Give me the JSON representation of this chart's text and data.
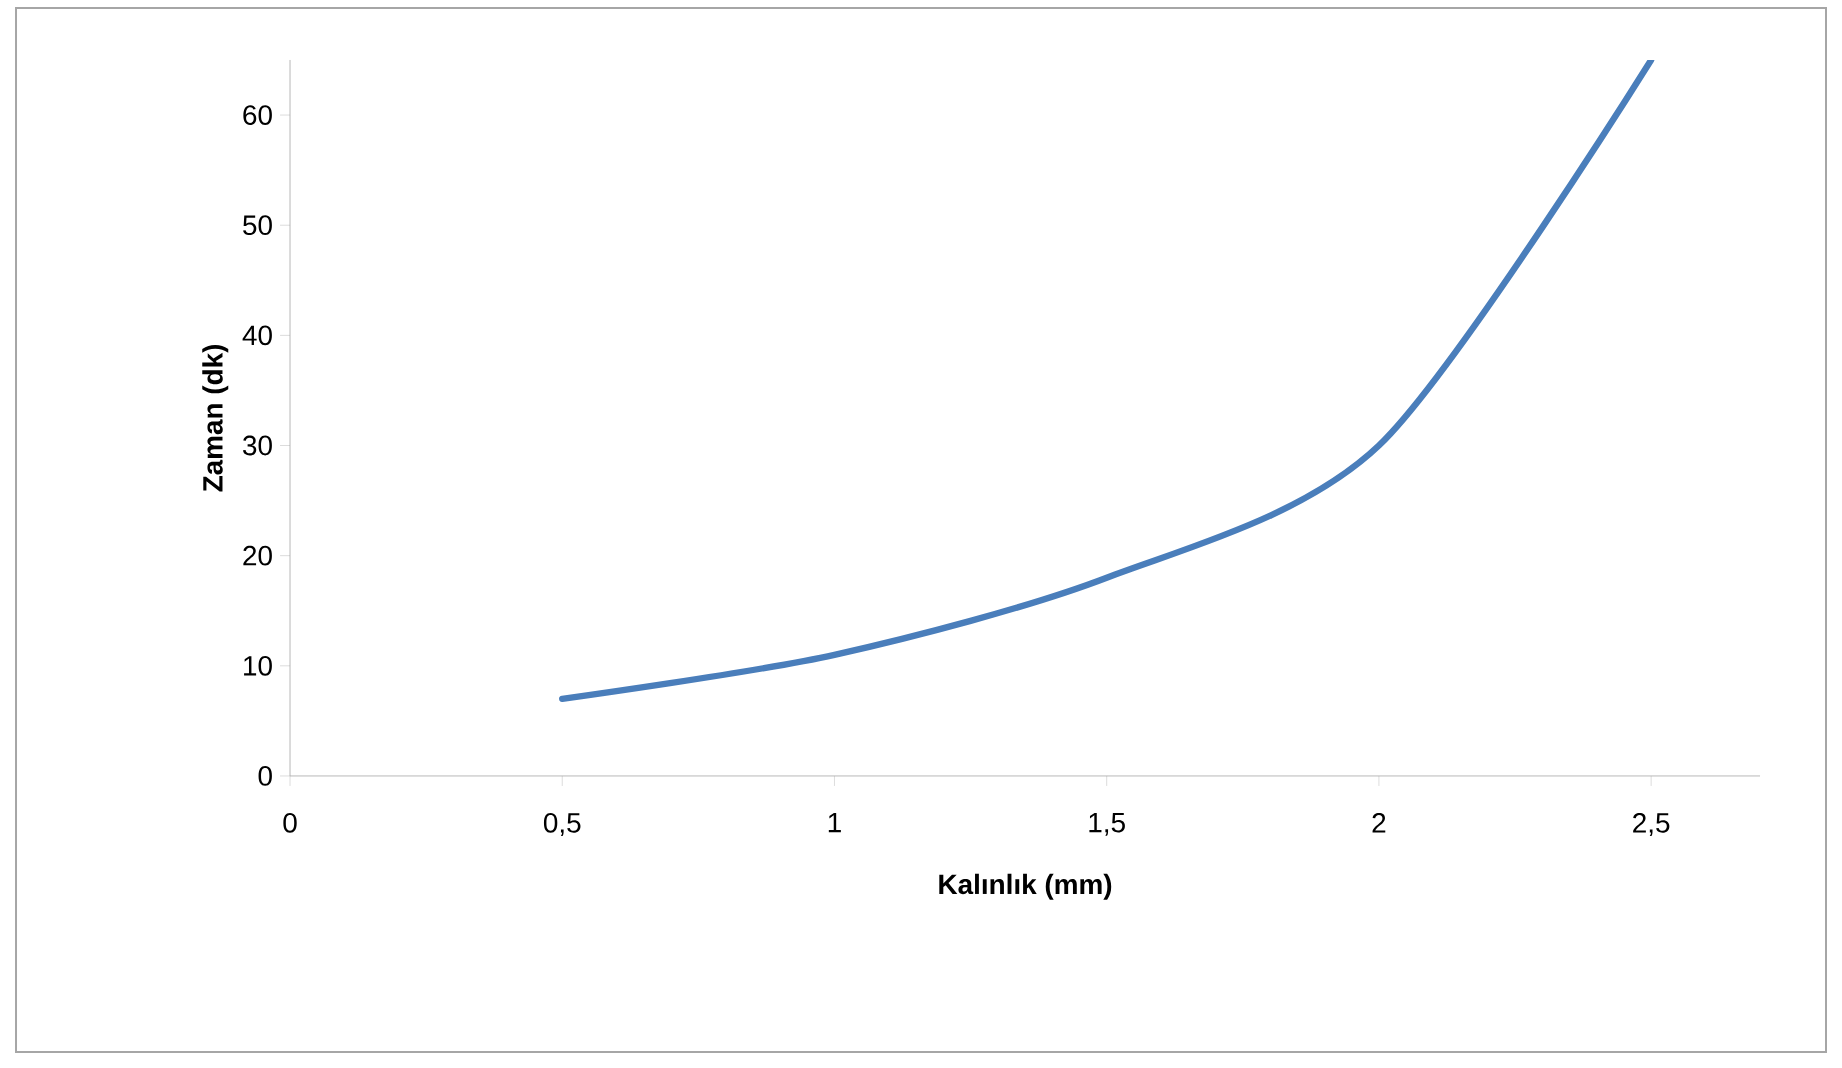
{
  "chart_data": {
    "type": "line",
    "xlabel": "Kalınlık (mm)",
    "ylabel": "Zaman (dk)",
    "x": [
      0.5,
      1,
      1.5,
      2,
      2.5
    ],
    "series": [
      {
        "color": "#4a7ebb",
        "values": [
          7,
          11,
          18,
          30,
          65
        ]
      }
    ],
    "xlim": [
      0,
      2.7
    ],
    "ylim": [
      0,
      65
    ],
    "xticks": [
      0,
      {
        "value": 0.5,
        "label": "0,5"
      },
      1,
      {
        "value": 1.5,
        "label": "1,5"
      },
      2,
      {
        "value": 2.5,
        "label": "2,5"
      }
    ],
    "yticks": [
      0,
      10,
      20,
      30,
      40,
      50,
      60
    ],
    "grid": false,
    "legend": false,
    "marker": "none",
    "line_style": "solid"
  }
}
